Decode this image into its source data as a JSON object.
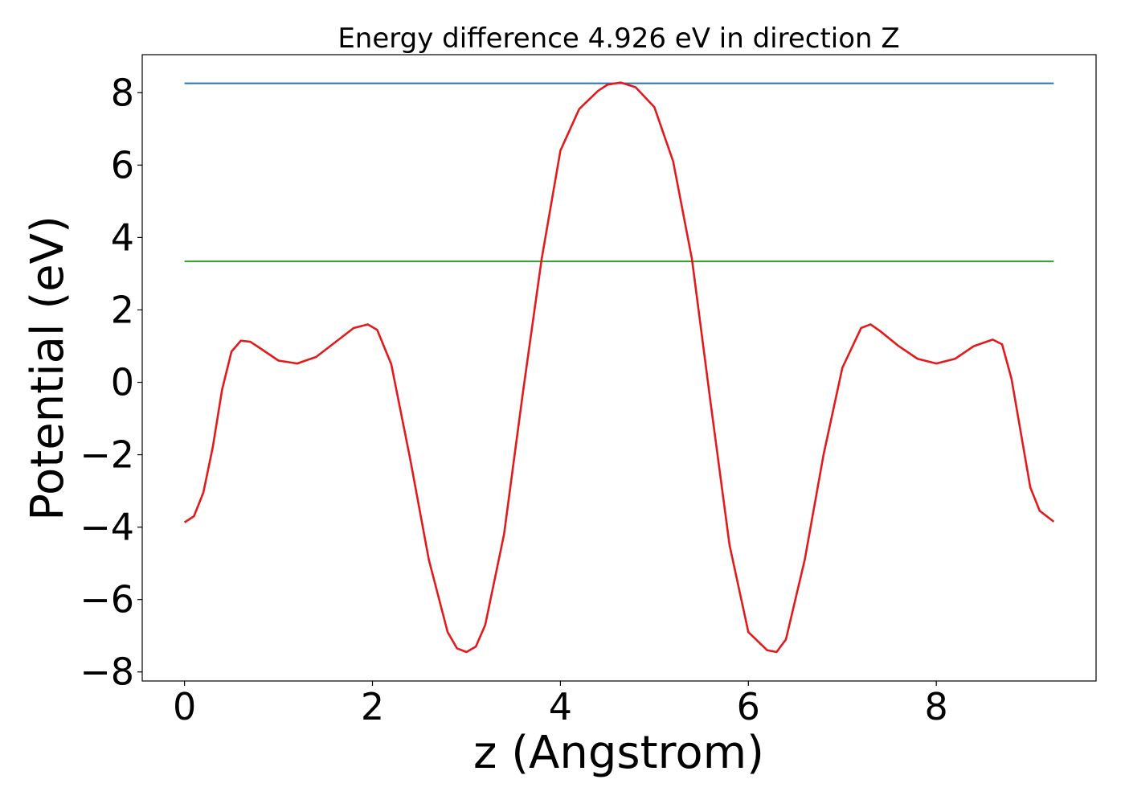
{
  "chart_data": {
    "type": "line",
    "title": "Energy difference 4.926 eV in direction Z",
    "xlabel": "z (Angstrom)",
    "ylabel": "Potential (eV)",
    "xlim": [
      -0.45,
      9.7
    ],
    "ylim": [
      -8.25,
      9.05
    ],
    "x_ticks": [
      0,
      2,
      4,
      6,
      8
    ],
    "x_tick_labels": [
      "0",
      "2",
      "4",
      "6",
      "8"
    ],
    "y_ticks": [
      -8,
      -6,
      -4,
      -2,
      0,
      2,
      4,
      6,
      8
    ],
    "y_tick_labels": [
      "−8",
      "−6",
      "−4",
      "−2",
      "0",
      "2",
      "4",
      "6",
      "8"
    ],
    "grid": false,
    "series": [
      {
        "color": "#1f77b4",
        "style": "line",
        "x": [
          0,
          9.25
        ],
        "y": [
          8.26,
          8.26
        ]
      },
      {
        "color": "#2ca02c",
        "style": "line",
        "x": [
          0,
          9.25
        ],
        "y": [
          3.34,
          3.34
        ]
      },
      {
        "color": "#e31a1c",
        "style": "line",
        "x": [
          0,
          0.1,
          0.2,
          0.3,
          0.4,
          0.5,
          0.6,
          0.7,
          0.8,
          1.0,
          1.2,
          1.4,
          1.6,
          1.8,
          1.95,
          2.05,
          2.2,
          2.4,
          2.6,
          2.8,
          2.9,
          3.0,
          3.1,
          3.2,
          3.4,
          3.6,
          3.8,
          4.0,
          4.2,
          4.4,
          4.5,
          4.64,
          4.8,
          5.0,
          5.2,
          5.4,
          5.6,
          5.8,
          6.0,
          6.2,
          6.3,
          6.4,
          6.6,
          6.8,
          7.0,
          7.2,
          7.3,
          7.4,
          7.6,
          7.8,
          8.0,
          8.2,
          8.4,
          8.6,
          8.7,
          8.8,
          9.0,
          9.1,
          9.25
        ],
        "y": [
          -3.87,
          -3.7,
          -3.05,
          -1.8,
          -0.2,
          0.85,
          1.15,
          1.12,
          0.95,
          0.6,
          0.52,
          0.7,
          1.1,
          1.5,
          1.6,
          1.45,
          0.5,
          -2.1,
          -4.9,
          -6.9,
          -7.35,
          -7.45,
          -7.3,
          -6.7,
          -4.2,
          -0.3,
          3.4,
          6.4,
          7.55,
          8.05,
          8.22,
          8.28,
          8.15,
          7.6,
          6.1,
          3.4,
          -0.6,
          -4.5,
          -6.9,
          -7.4,
          -7.45,
          -7.1,
          -4.9,
          -2.0,
          0.4,
          1.5,
          1.6,
          1.42,
          1.0,
          0.65,
          0.52,
          0.65,
          1.0,
          1.18,
          1.05,
          0.1,
          -2.9,
          -3.55,
          -3.85
        ]
      }
    ]
  }
}
